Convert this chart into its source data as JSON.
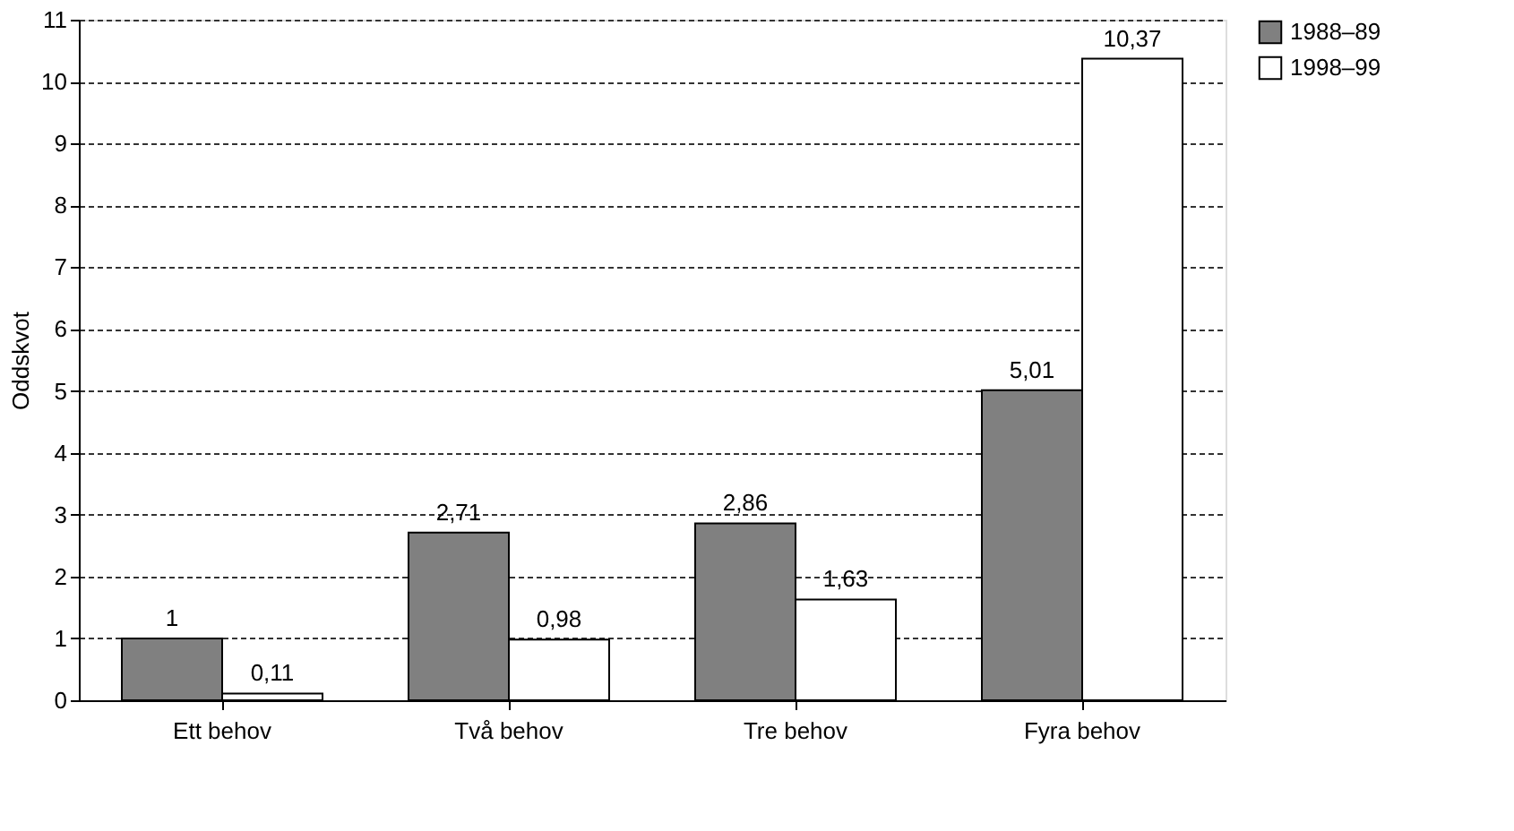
{
  "chart_data": {
    "type": "bar",
    "ylabel": "Oddskvot",
    "categories": [
      "Ett behov",
      "Två behov",
      "Tre behov",
      "Fyra behov"
    ],
    "series": [
      {
        "name": "1988–89",
        "color": "#808080",
        "values": [
          1,
          2.71,
          2.86,
          5.01
        ],
        "value_labels": [
          "1",
          "2,71",
          "2,86",
          "5,01"
        ]
      },
      {
        "name": "1998–99",
        "color": "#ffffff",
        "values": [
          0.11,
          0.98,
          1.63,
          10.37
        ],
        "value_labels": [
          "0,11",
          "0,98",
          "1,63",
          "10,37"
        ]
      }
    ],
    "ylim": [
      0,
      11
    ],
    "yticks": [
      0,
      1,
      2,
      3,
      4,
      5,
      6,
      7,
      8,
      9,
      10,
      11
    ],
    "grid": "y",
    "legend": "right"
  }
}
